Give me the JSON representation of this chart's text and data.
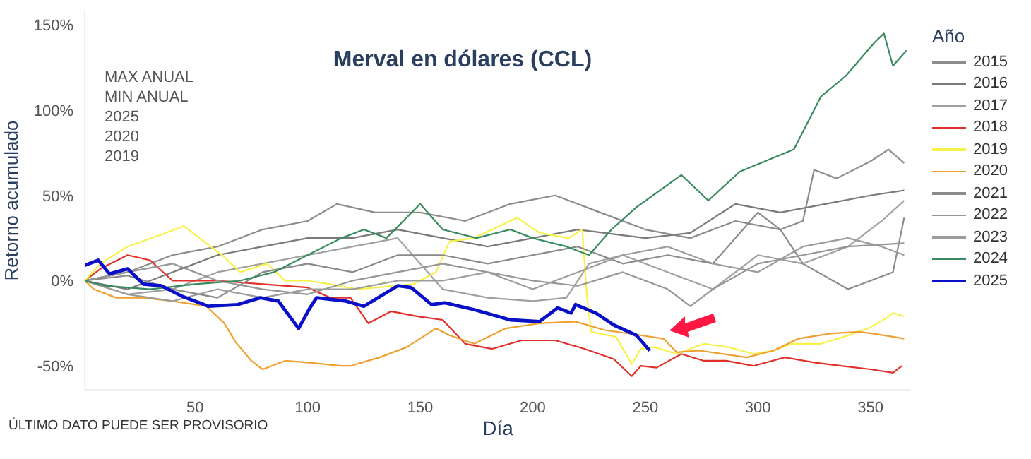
{
  "chart_data": {
    "type": "line",
    "title": "Merval en dólares (CCL)",
    "xlabel": "Día",
    "ylabel": "Retorno acumulado",
    "legend_title": "Año",
    "legend": "right",
    "annotations": [
      "MAX ANUAL",
      "MIN ANUAL",
      "2025",
      "2020",
      "2019",
      "ÚLTIMO DATO PUEDE SER PROVISORIO"
    ],
    "xlim": [
      1,
      368
    ],
    "xticks": [
      50,
      100,
      150,
      200,
      250,
      300,
      350
    ],
    "ylim": [
      -64,
      158
    ],
    "yticks": [
      {
        "value": -50,
        "label": "-50%"
      },
      {
        "value": 0,
        "label": "0%"
      },
      {
        "value": 50,
        "label": "50%"
      },
      {
        "value": 100,
        "label": "100%"
      },
      {
        "value": 150,
        "label": "150%"
      }
    ],
    "series": [
      {
        "name": "2015",
        "color": "#8c8c8c",
        "x": [
          1,
          20,
          40,
          60,
          80,
          100,
          113,
          130,
          150,
          170,
          190,
          210,
          230,
          250,
          270,
          290,
          310,
          320,
          325,
          335,
          350,
          358,
          365
        ],
        "values": [
          0,
          5,
          15,
          20,
          30,
          35,
          45,
          40,
          40,
          35,
          45,
          50,
          40,
          30,
          25,
          35,
          30,
          35,
          65,
          60,
          70,
          77,
          69
        ]
      },
      {
        "name": "2016",
        "color": "#7a7a7a",
        "x": [
          1,
          20,
          40,
          60,
          80,
          100,
          120,
          140,
          160,
          180,
          200,
          220,
          250,
          270,
          290,
          310,
          330,
          350,
          365
        ],
        "values": [
          0,
          -5,
          5,
          15,
          20,
          25,
          25,
          30,
          25,
          20,
          25,
          30,
          25,
          28,
          45,
          40,
          45,
          50,
          53
        ]
      },
      {
        "name": "2017",
        "color": "#a0a0a0",
        "x": [
          1,
          20,
          40,
          60,
          80,
          100,
          120,
          140,
          160,
          180,
          200,
          215,
          225,
          240,
          260,
          280,
          300,
          320,
          340,
          355,
          365
        ],
        "values": [
          0,
          -8,
          -5,
          5,
          10,
          15,
          20,
          25,
          -5,
          -10,
          -12,
          -10,
          10,
          15,
          5,
          -5,
          15,
          10,
          20,
          35,
          47
        ]
      },
      {
        "name": "2018",
        "color": "#e0302a",
        "x": [
          1,
          8,
          20,
          30,
          40,
          60,
          80,
          100,
          110,
          119,
          127,
          137,
          149,
          160,
          170,
          182,
          195,
          210,
          223,
          236,
          244,
          248,
          255,
          266,
          276,
          286,
          298,
          312,
          325,
          337,
          350,
          360,
          364
        ],
        "values": [
          0,
          7,
          15,
          12,
          0,
          0,
          -2,
          -4,
          -10,
          -10,
          -25,
          -18,
          -21,
          -23,
          -37,
          -40,
          -35,
          -35,
          -40,
          -46,
          -56,
          -50,
          -51,
          -43,
          -47,
          -47,
          -50,
          -45,
          -48,
          -50,
          -52,
          -54,
          -50
        ]
      },
      {
        "name": "2019",
        "color": "#f6f24a",
        "x": [
          1,
          8,
          20,
          35,
          45,
          50,
          62,
          70,
          82,
          90,
          100,
          110,
          122,
          147,
          157,
          163,
          174,
          182,
          193,
          203,
          216,
          222,
          224,
          226,
          237,
          244,
          248,
          254,
          264,
          276,
          287,
          298,
          307,
          315,
          328,
          338,
          349,
          357,
          360,
          365
        ],
        "values": [
          0,
          10,
          20,
          27,
          32,
          27,
          15,
          5,
          10,
          0,
          0,
          -2,
          -5,
          -2,
          5,
          23,
          25,
          30,
          37,
          28,
          25,
          30,
          -8,
          -30,
          -33,
          -49,
          -40,
          -39,
          -43,
          -37,
          -39,
          -43,
          -41,
          -37,
          -37,
          -33,
          -28,
          -22,
          -19,
          -21
        ]
      },
      {
        "name": "2020",
        "color": "#f0a030",
        "x": [
          1,
          5,
          15,
          27,
          40,
          55,
          63,
          68,
          75,
          80,
          90,
          100,
          115,
          119,
          132,
          144,
          157,
          163,
          174,
          188,
          203,
          219,
          232,
          248,
          258,
          264,
          274,
          295,
          307,
          318,
          332,
          345,
          351,
          365
        ],
        "values": [
          0,
          -5,
          -10,
          -10,
          -12,
          -15,
          -25,
          -36,
          -47,
          -52,
          -47,
          -48,
          -50,
          -50,
          -45,
          -39,
          -28,
          -32,
          -37,
          -28,
          -25,
          -24,
          -29,
          -32,
          -34,
          -42,
          -41,
          -45,
          -41,
          -34,
          -31,
          -30,
          -31,
          -34
        ]
      },
      {
        "name": "2021",
        "color": "#8a8a8a",
        "x": [
          1,
          20,
          40,
          60,
          80,
          100,
          120,
          140,
          160,
          180,
          200,
          220,
          240,
          260,
          280,
          300,
          310,
          320,
          340,
          360,
          365
        ],
        "values": [
          0,
          3,
          -5,
          -10,
          5,
          10,
          5,
          15,
          15,
          10,
          15,
          20,
          10,
          15,
          10,
          40,
          30,
          10,
          -5,
          5,
          37
        ]
      },
      {
        "name": "2022",
        "color": "#969696",
        "x": [
          1,
          20,
          40,
          60,
          80,
          100,
          120,
          140,
          160,
          180,
          200,
          220,
          240,
          260,
          270,
          280,
          300,
          320,
          340,
          365
        ],
        "values": [
          0,
          5,
          10,
          0,
          -5,
          -8,
          0,
          5,
          10,
          5,
          0,
          -3,
          5,
          -5,
          -15,
          -5,
          10,
          15,
          20,
          22
        ]
      },
      {
        "name": "2023",
        "color": "#9c9c9c",
        "x": [
          1,
          20,
          40,
          60,
          80,
          100,
          120,
          140,
          160,
          180,
          200,
          220,
          240,
          260,
          280,
          300,
          320,
          340,
          355,
          365
        ],
        "values": [
          0,
          -8,
          -12,
          -5,
          -10,
          -5,
          -5,
          0,
          0,
          5,
          -5,
          5,
          15,
          20,
          10,
          5,
          20,
          25,
          20,
          15
        ]
      },
      {
        "name": "2024",
        "color": "#3a8a60",
        "x": [
          1,
          10,
          30,
          50,
          70,
          85,
          100,
          115,
          125,
          135,
          150,
          160,
          175,
          190,
          200,
          215,
          225,
          235,
          246,
          266,
          278,
          292,
          316,
          328,
          339,
          352,
          356,
          360,
          366
        ],
        "values": [
          0,
          -3,
          -5,
          -2,
          0,
          5,
          15,
          25,
          30,
          25,
          45,
          30,
          25,
          30,
          25,
          20,
          15,
          30,
          43,
          62,
          47,
          64,
          77,
          108,
          120,
          140,
          145,
          126,
          135
        ]
      },
      {
        "name": "2025",
        "color": "#0a10c8",
        "x": [
          1,
          7,
          12,
          20,
          27,
          35,
          44,
          56,
          69,
          79,
          87,
          96,
          101,
          104,
          117,
          125,
          140,
          146,
          155,
          161,
          174,
          190,
          203,
          211,
          217,
          219,
          228,
          236,
          246,
          252
        ],
        "values": [
          9,
          12,
          4,
          7,
          -2,
          -3,
          -9,
          -15,
          -14,
          -10,
          -12,
          -28,
          -16,
          -10,
          -12,
          -15,
          -3,
          -4,
          -14,
          -13,
          -17,
          -23,
          -24,
          -16,
          -19,
          -14,
          -19,
          -26,
          -32,
          -41
        ]
      }
    ]
  }
}
